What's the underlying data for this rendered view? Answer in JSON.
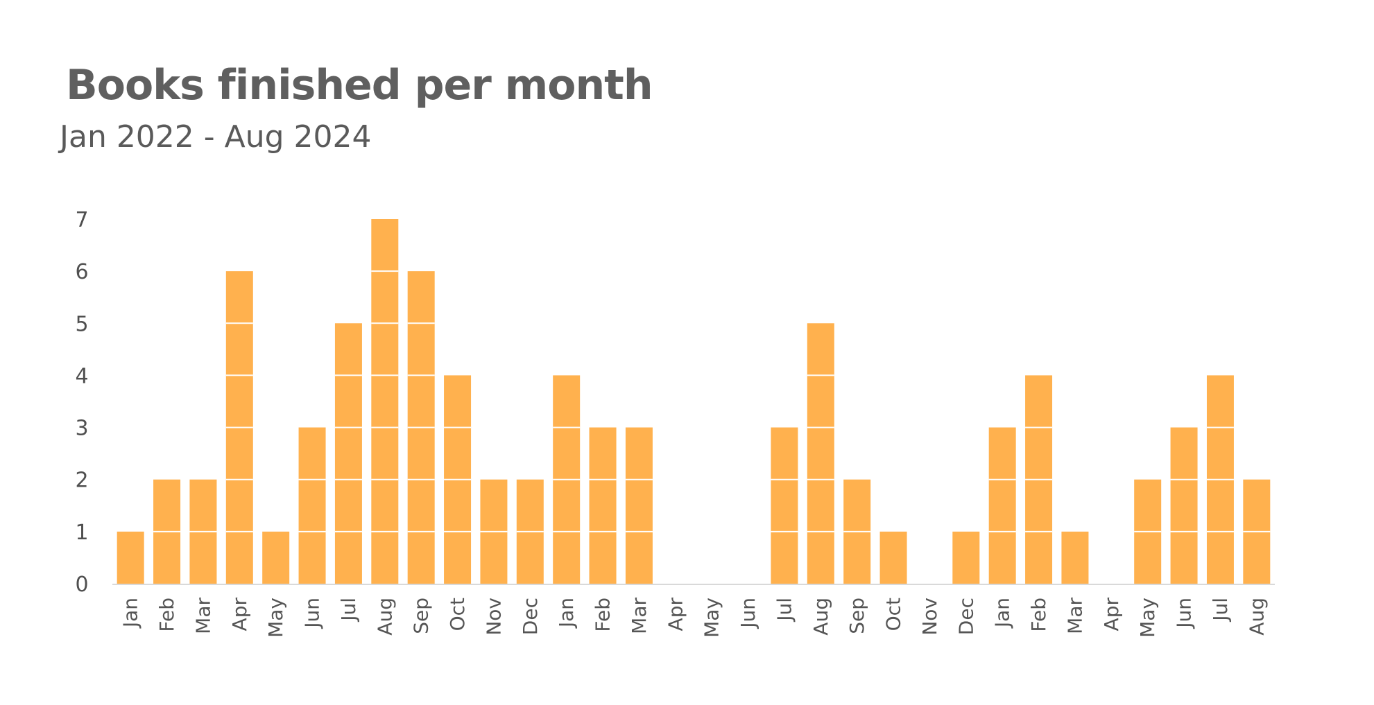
{
  "chart_data": {
    "type": "bar",
    "title": "Books finished per month",
    "subtitle": "Jan 2022 - Aug 2024",
    "xlabel": "",
    "ylabel": "",
    "ylim": [
      0,
      7
    ],
    "yticks": [
      0,
      1,
      2,
      3,
      4,
      5,
      6,
      7
    ],
    "grid": false,
    "categories": [
      "Jan",
      "Feb",
      "Mar",
      "Apr",
      "May",
      "Jun",
      "Jul",
      "Aug",
      "Sep",
      "Oct",
      "Nov",
      "Dec",
      "Jan",
      "Feb",
      "Mar",
      "Apr",
      "May",
      "Jun",
      "Jul",
      "Aug",
      "Sep",
      "Oct",
      "Nov",
      "Dec",
      "Jan",
      "Feb",
      "Mar",
      "Apr",
      "May",
      "Jun",
      "Jul",
      "Aug"
    ],
    "values": [
      1,
      2,
      2,
      6,
      1,
      3,
      5,
      7,
      6,
      4,
      2,
      2,
      4,
      3,
      3,
      0,
      0,
      0,
      3,
      5,
      2,
      1,
      0,
      1,
      3,
      4,
      1,
      0,
      2,
      3,
      4,
      2
    ],
    "bar_color": "#ffb14e",
    "segment_line_color": "#ffffff",
    "axis_color": "#d9d9d9"
  }
}
